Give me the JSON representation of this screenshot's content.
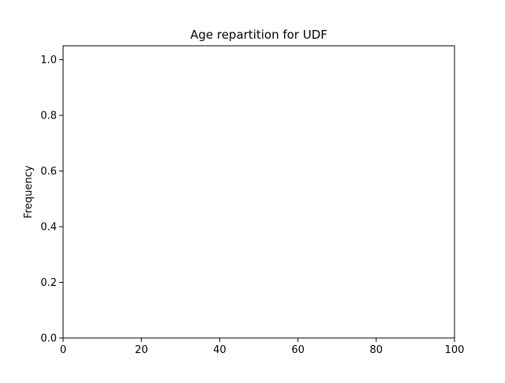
{
  "chart_data": {
    "type": "bar",
    "title": "Age repartition for UDF",
    "xlabel": "",
    "ylabel": "Frequency",
    "xlim": [
      0,
      100
    ],
    "ylim": [
      0,
      1.05
    ],
    "x_ticks": [
      0,
      20,
      40,
      60,
      80,
      100
    ],
    "x_tick_labels": [
      "0",
      "20",
      "40",
      "60",
      "80",
      "100"
    ],
    "y_ticks": [
      0.0,
      0.2,
      0.4,
      0.6,
      0.8,
      1.0
    ],
    "y_tick_labels": [
      "0.0",
      "0.2",
      "0.4",
      "0.6",
      "0.8",
      "1.0"
    ],
    "grid": false,
    "legend": "none",
    "series": []
  }
}
